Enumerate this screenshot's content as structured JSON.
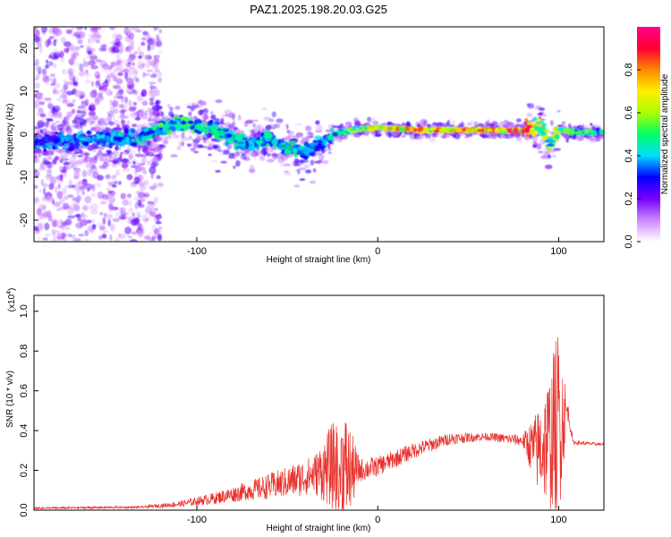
{
  "figure": {
    "title": "PAZ1.2025.198.20.03.G25"
  },
  "chart_data": [
    {
      "type": "heatmap",
      "xlabel": "Height of straight line (km)",
      "ylabel": "Frequency (Hz)",
      "xlim": [
        -190,
        125
      ],
      "ylim": [
        -25,
        25
      ],
      "x_ticks": [
        -100,
        0,
        100
      ],
      "y_ticks": [
        -20,
        -10,
        0,
        10,
        20
      ],
      "colorbar": {
        "label": "Normalized spectral amplitude",
        "range": [
          0,
          1
        ],
        "ticks": [
          0.0,
          0.2,
          0.4,
          0.6,
          0.8
        ],
        "colors": [
          "#ffffff",
          "#cc88ff",
          "#7700ff",
          "#0000ff",
          "#00ddff",
          "#00ff66",
          "#aaff00",
          "#ffee00",
          "#ff8800",
          "#ff0033",
          "#ff0088"
        ]
      },
      "main_line": [
        {
          "x": -190,
          "y": -2.0,
          "a": 0.45
        },
        {
          "x": -170,
          "y": -1.5,
          "a": 0.45
        },
        {
          "x": -150,
          "y": -1.0,
          "a": 0.5
        },
        {
          "x": -130,
          "y": -0.8,
          "a": 0.55
        },
        {
          "x": -120,
          "y": 1.5,
          "a": 0.6
        },
        {
          "x": -110,
          "y": 2.5,
          "a": 0.62
        },
        {
          "x": -100,
          "y": 1.8,
          "a": 0.6
        },
        {
          "x": -90,
          "y": 0.8,
          "a": 0.58
        },
        {
          "x": -80,
          "y": -1.0,
          "a": 0.56
        },
        {
          "x": -70,
          "y": -2.5,
          "a": 0.55
        },
        {
          "x": -60,
          "y": -0.5,
          "a": 0.55
        },
        {
          "x": -50,
          "y": -3.5,
          "a": 0.55
        },
        {
          "x": -40,
          "y": -4.0,
          "a": 0.5
        },
        {
          "x": -30,
          "y": -2.0,
          "a": 0.45
        },
        {
          "x": -22,
          "y": 0.3,
          "a": 0.55
        },
        {
          "x": -10,
          "y": 1.2,
          "a": 0.7
        },
        {
          "x": 0,
          "y": 1.5,
          "a": 0.8
        },
        {
          "x": 20,
          "y": 1.0,
          "a": 0.88
        },
        {
          "x": 40,
          "y": 1.0,
          "a": 0.92
        },
        {
          "x": 60,
          "y": 1.0,
          "a": 0.96
        },
        {
          "x": 80,
          "y": 0.8,
          "a": 0.98
        },
        {
          "x": 90,
          "y": 2.5,
          "a": 0.7
        },
        {
          "x": 95,
          "y": -3.0,
          "a": 0.6
        },
        {
          "x": 100,
          "y": 1.0,
          "a": 0.75
        },
        {
          "x": 110,
          "y": 0.5,
          "a": 0.55
        },
        {
          "x": 125,
          "y": 0.5,
          "a": 0.5
        }
      ]
    },
    {
      "type": "line",
      "xlabel": "Height of straight line (km)",
      "ylabel": "SNR (10 * v/v)",
      "y_exponent": "(x10",
      "y_exponent_power": "4",
      "y_exponent_close": ")",
      "xlim": [
        -190,
        125
      ],
      "ylim": [
        0,
        1.08
      ],
      "x_ticks": [
        -100,
        0,
        100
      ],
      "y_ticks": [
        0.0,
        0.2,
        0.4,
        0.6,
        0.8,
        1.0
      ],
      "series": [
        {
          "color": "#e8302a",
          "envelope": [
            {
              "x": -190,
              "y": 0.01,
              "amp": 0.005
            },
            {
              "x": -130,
              "y": 0.015,
              "amp": 0.006
            },
            {
              "x": -110,
              "y": 0.03,
              "amp": 0.015
            },
            {
              "x": -90,
              "y": 0.06,
              "amp": 0.03
            },
            {
              "x": -70,
              "y": 0.1,
              "amp": 0.05
            },
            {
              "x": -50,
              "y": 0.14,
              "amp": 0.08
            },
            {
              "x": -35,
              "y": 0.18,
              "amp": 0.1
            },
            {
              "x": -25,
              "y": 0.22,
              "amp": 0.22
            },
            {
              "x": -18,
              "y": 0.2,
              "amp": 0.3
            },
            {
              "x": -10,
              "y": 0.2,
              "amp": 0.06
            },
            {
              "x": 0,
              "y": 0.22,
              "amp": 0.05
            },
            {
              "x": 20,
              "y": 0.3,
              "amp": 0.04
            },
            {
              "x": 40,
              "y": 0.36,
              "amp": 0.03
            },
            {
              "x": 60,
              "y": 0.37,
              "amp": 0.02
            },
            {
              "x": 80,
              "y": 0.35,
              "amp": 0.03
            },
            {
              "x": 88,
              "y": 0.3,
              "amp": 0.2
            },
            {
              "x": 95,
              "y": 0.35,
              "amp": 0.35
            },
            {
              "x": 100,
              "y": 0.45,
              "amp": 0.5
            },
            {
              "x": 105,
              "y": 0.5,
              "amp": 0.05
            },
            {
              "x": 108,
              "y": 0.34,
              "amp": 0.01
            },
            {
              "x": 125,
              "y": 0.33,
              "amp": 0.008
            }
          ]
        }
      ]
    }
  ]
}
